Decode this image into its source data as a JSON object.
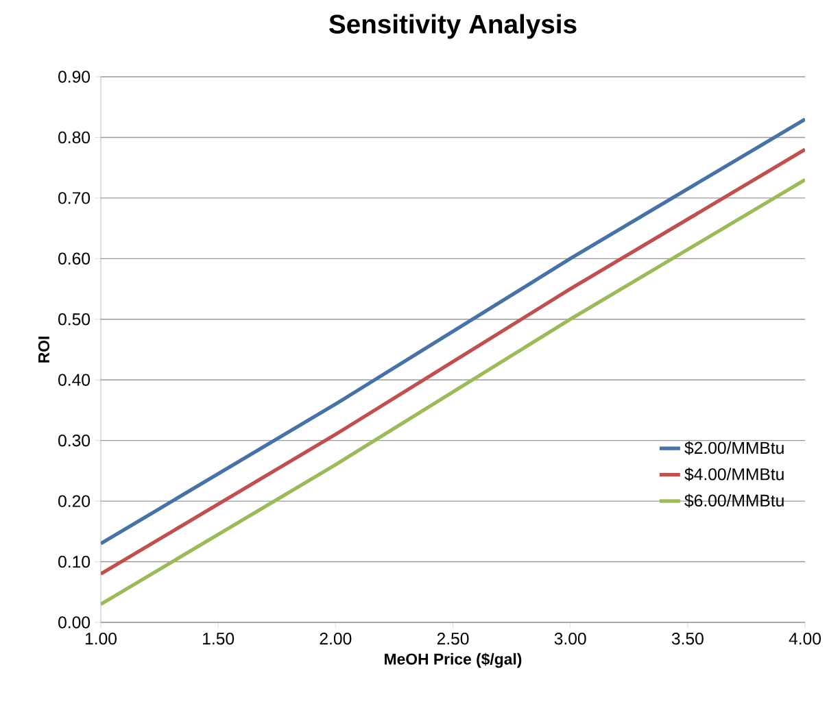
{
  "chart_data": {
    "type": "line",
    "title": "Sensitivity Analysis",
    "xlabel": "MeOH Price ($/gal)",
    "ylabel": "ROI",
    "series": [
      {
        "name": "$2.00/MMBtu",
        "color": "#4572a7",
        "x": [
          1.0,
          2.0,
          3.0,
          4.0
        ],
        "values": [
          0.13,
          0.36,
          0.6,
          0.83
        ]
      },
      {
        "name": "$4.00/MMBtu",
        "color": "#c0504d",
        "x": [
          1.0,
          2.0,
          3.0,
          4.0
        ],
        "values": [
          0.08,
          0.31,
          0.55,
          0.78
        ]
      },
      {
        "name": "$6.00/MMBtu",
        "color": "#9bbb59",
        "x": [
          1.0,
          2.0,
          3.0,
          4.0
        ],
        "values": [
          0.03,
          0.26,
          0.5,
          0.73
        ]
      }
    ],
    "xlim": [
      1.0,
      4.0
    ],
    "ylim": [
      0.0,
      0.9
    ],
    "xticks": [
      {
        "value": 1.0,
        "label": "1.00"
      },
      {
        "value": 1.5,
        "label": "1.50"
      },
      {
        "value": 2.0,
        "label": "2.00"
      },
      {
        "value": 2.5,
        "label": "2.50"
      },
      {
        "value": 3.0,
        "label": "3.00"
      },
      {
        "value": 3.5,
        "label": "3.50"
      },
      {
        "value": 4.0,
        "label": "4.00"
      }
    ],
    "yticks": [
      {
        "value": 0.0,
        "label": "0.00"
      },
      {
        "value": 0.1,
        "label": "0.10"
      },
      {
        "value": 0.2,
        "label": "0.20"
      },
      {
        "value": 0.3,
        "label": "0.30"
      },
      {
        "value": 0.4,
        "label": "0.40"
      },
      {
        "value": 0.5,
        "label": "0.50"
      },
      {
        "value": 0.6,
        "label": "0.60"
      },
      {
        "value": 0.7,
        "label": "0.70"
      },
      {
        "value": 0.8,
        "label": "0.80"
      },
      {
        "value": 0.9,
        "label": "0.90"
      }
    ],
    "grid": "y",
    "legend": "right",
    "marker": "none",
    "line_style": "solid"
  }
}
